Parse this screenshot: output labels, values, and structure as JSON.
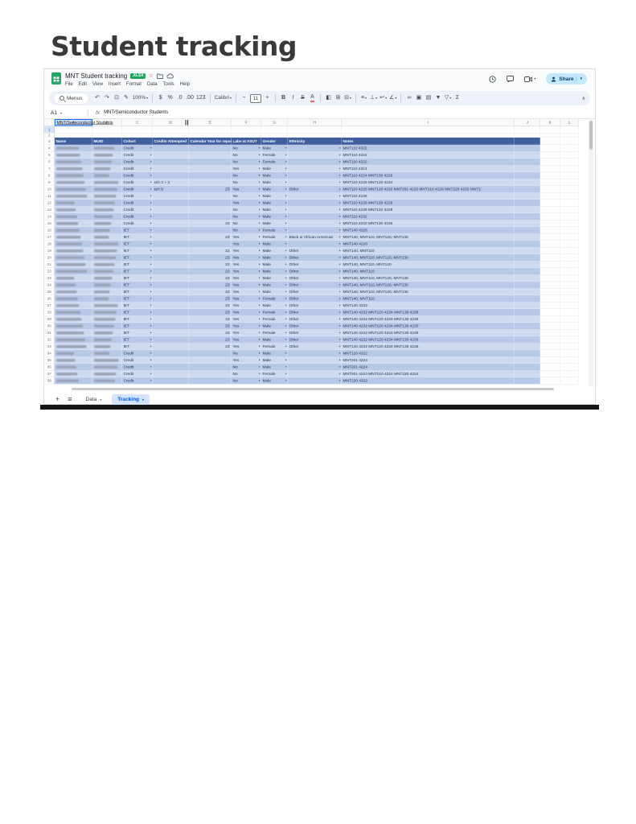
{
  "page": {
    "heading": "Student tracking"
  },
  "app": {
    "doc_title": "MNT Student tracking",
    "file_badge": ".XLSX",
    "share_label": "Share",
    "menus_label": "Menus",
    "menu_items": [
      "File",
      "Edit",
      "View",
      "Insert",
      "Format",
      "Data",
      "Tools",
      "Help"
    ],
    "toolbar": {
      "collapse_glyph": "∧",
      "items": [
        {
          "t": "icon",
          "name": "undo",
          "g": "↶"
        },
        {
          "t": "icon",
          "name": "redo",
          "g": "↷"
        },
        {
          "t": "icon",
          "name": "print",
          "g": "⊡"
        },
        {
          "t": "icon",
          "name": "paint-format",
          "g": "✎"
        },
        {
          "t": "text",
          "name": "zoom-select",
          "label": "100%",
          "caret": true
        },
        {
          "t": "sep"
        },
        {
          "t": "icon",
          "name": "format-currency",
          "g": "$"
        },
        {
          "t": "icon",
          "name": "format-percent",
          "g": "%"
        },
        {
          "t": "icon",
          "name": "decrease-decimals",
          "g": ".0"
        },
        {
          "t": "icon",
          "name": "increase-decimals",
          "g": ".00"
        },
        {
          "t": "icon",
          "name": "more-formats",
          "g": "123"
        },
        {
          "t": "sep"
        },
        {
          "t": "text",
          "name": "font-select",
          "label": "Calibri",
          "caret": true
        },
        {
          "t": "sep"
        },
        {
          "t": "icon",
          "name": "decrease-font-size",
          "g": "−"
        },
        {
          "t": "field",
          "name": "font-size-input",
          "label": "11"
        },
        {
          "t": "icon",
          "name": "increase-font-size",
          "g": "+"
        },
        {
          "t": "sep"
        },
        {
          "t": "icon",
          "name": "bold",
          "g": "B"
        },
        {
          "t": "icon",
          "name": "italic",
          "g": "I"
        },
        {
          "t": "icon",
          "name": "strikethrough",
          "g": "S"
        },
        {
          "t": "icon",
          "name": "text-color",
          "g": "A"
        },
        {
          "t": "sep"
        },
        {
          "t": "icon",
          "name": "fill-color",
          "g": "◧"
        },
        {
          "t": "icon",
          "name": "borders",
          "g": "⊞"
        },
        {
          "t": "icon",
          "name": "merge-cells",
          "g": "⊟",
          "caret": true
        },
        {
          "t": "sep"
        },
        {
          "t": "icon",
          "name": "horizontal-align",
          "g": "≡",
          "caret": true
        },
        {
          "t": "icon",
          "name": "vertical-align",
          "g": "⊥",
          "caret": true
        },
        {
          "t": "icon",
          "name": "text-wrap",
          "g": "↩",
          "caret": true
        },
        {
          "t": "icon",
          "name": "text-rotation",
          "g": "∠",
          "caret": true
        },
        {
          "t": "sep"
        },
        {
          "t": "icon",
          "name": "insert-link",
          "g": "∞"
        },
        {
          "t": "icon",
          "name": "insert-comment",
          "g": "▣"
        },
        {
          "t": "icon",
          "name": "insert-chart",
          "g": "▤"
        },
        {
          "t": "icon",
          "name": "create-filter",
          "g": "▼"
        },
        {
          "t": "icon",
          "name": "filter-views",
          "g": "▽",
          "caret": true
        },
        {
          "t": "icon",
          "name": "functions-sigma",
          "g": "Σ"
        }
      ]
    },
    "formula_bar": {
      "cell_ref": "A1",
      "fx_label": "fx",
      "value": "MNT/Semiconductor Students"
    },
    "grid": {
      "column_letters": [
        "A",
        "B",
        "C",
        "D",
        "E",
        "F",
        "G",
        "H",
        "I",
        "J",
        "K",
        "L"
      ],
      "a1_text": "MNT/Semiconductor Students",
      "header_row_number": 3,
      "columns": [
        "Name",
        "MUID",
        "Cohort",
        "Credits Attempted",
        "Calendar Year for reporting",
        "Labs at ASU?",
        "Gender",
        "Ethnicity",
        "Notes"
      ],
      "rows": [
        {
          "n": 4,
          "cohort": "Credit",
          "credits": "",
          "year": "",
          "labs": "No",
          "gender": "Male",
          "eth": "",
          "notes": "MNT110 4322"
        },
        {
          "n": 5,
          "cohort": "Credit",
          "credits": "",
          "year": "",
          "labs": "No",
          "gender": "Female",
          "eth": "",
          "notes": "MNT110 4322"
        },
        {
          "n": 6,
          "cohort": "Credit",
          "credits": "",
          "year": "",
          "labs": "No",
          "gender": "Female",
          "eth": "",
          "notes": "MNT110 4322"
        },
        {
          "n": 7,
          "cohort": "Credit",
          "credits": "",
          "year": "",
          "labs": "Yes",
          "gender": "Male",
          "eth": "",
          "notes": "MNT110 4324"
        },
        {
          "n": 8,
          "cohort": "Credit",
          "credits": "",
          "year": "",
          "labs": "No",
          "gender": "Male",
          "eth": "",
          "notes": "MNT110 4224 MNT130 4226"
        },
        {
          "n": 9,
          "cohort": "Credit",
          "credits": "sch 3 + 3",
          "year": "",
          "labs": "No",
          "gender": "Male",
          "eth": "",
          "notes": "MNT110 4226 MNT120 4234"
        },
        {
          "n": 10,
          "cohort": "Credit",
          "credits": "sch 9",
          "year": "23",
          "labs": "Yes",
          "gender": "Male",
          "eth": "Other",
          "notes": "MNT110 4226 MNT120 4232 MNT201 4226 MNT210 4226 MNT220 4232 MNT2"
        },
        {
          "n": 11,
          "cohort": "Credit",
          "credits": "",
          "year": "",
          "labs": "No",
          "gender": "Male",
          "eth": "",
          "notes": "MNT110 4226"
        },
        {
          "n": 12,
          "cohort": "Credit",
          "credits": "",
          "year": "",
          "labs": "Yes",
          "gender": "Male",
          "eth": "",
          "notes": "MNT110 4226 MNT130 4226"
        },
        {
          "n": 13,
          "cohort": "Credit",
          "credits": "",
          "year": "",
          "labs": "No",
          "gender": "Male",
          "eth": "",
          "notes": "MNT110 4226 MNT120 4228"
        },
        {
          "n": 14,
          "cohort": "Credit",
          "credits": "",
          "year": "",
          "labs": "No",
          "gender": "Male",
          "eth": "",
          "notes": "MNT110 4232"
        },
        {
          "n": 15,
          "cohort": "Credit",
          "credits": "",
          "year": "23",
          "labs": "No",
          "gender": "Male",
          "eth": "",
          "notes": "MNT110 4232 MNT130 4236"
        },
        {
          "n": 16,
          "cohort": "IET",
          "credits": "",
          "year": "",
          "labs": "No",
          "gender": "Female",
          "eth": "",
          "notes": "MNT140 4226"
        },
        {
          "n": 17,
          "cohort": "IET",
          "credits": "",
          "year": "23",
          "labs": "Yes",
          "gender": "Female",
          "eth": "Black or African American",
          "notes": "MNT140, MNT110, MNT120, MNT130"
        },
        {
          "n": 18,
          "cohort": "IET",
          "credits": "",
          "year": "",
          "labs": "Yes",
          "gender": "Male",
          "eth": "",
          "notes": "MNT140 4226"
        },
        {
          "n": 19,
          "cohort": "IET",
          "credits": "",
          "year": "23",
          "labs": "Yes",
          "gender": "Male",
          "eth": "Other",
          "notes": "MNT140, MNT110"
        },
        {
          "n": 20,
          "cohort": "IET",
          "credits": "",
          "year": "23",
          "labs": "Yes",
          "gender": "Male",
          "eth": "Other",
          "notes": "MNT140, MNT110, MNT120, MNT130"
        },
        {
          "n": 21,
          "cohort": "IET",
          "credits": "",
          "year": "23",
          "labs": "Yes",
          "gender": "Male",
          "eth": "Other",
          "notes": "MNT140, MNT110, MNT120"
        },
        {
          "n": 22,
          "cohort": "IET",
          "credits": "",
          "year": "23",
          "labs": "Yes",
          "gender": "Male",
          "eth": "Other",
          "notes": "MNT140, MNT110"
        },
        {
          "n": 23,
          "cohort": "IET",
          "credits": "",
          "year": "23",
          "labs": "Yes",
          "gender": "Male",
          "eth": "Other",
          "notes": "MNT140, MNT110, MNT120, MNT130"
        },
        {
          "n": 24,
          "cohort": "IET",
          "credits": "",
          "year": "23",
          "labs": "Yes",
          "gender": "Male",
          "eth": "Other",
          "notes": "MNT140, MNT110, MNT120, MNT130"
        },
        {
          "n": 25,
          "cohort": "IET",
          "credits": "",
          "year": "23",
          "labs": "Yes",
          "gender": "Male",
          "eth": "Other",
          "notes": "MNT140, MNT110, MNT120, MNT130"
        },
        {
          "n": 26,
          "cohort": "IET",
          "credits": "",
          "year": "23",
          "labs": "Yes",
          "gender": "Female",
          "eth": "Other",
          "notes": "MNT140, MNT110"
        },
        {
          "n": 27,
          "cohort": "IET",
          "credits": "",
          "year": "23",
          "labs": "Yes",
          "gender": "Male",
          "eth": "Other",
          "notes": "MNT140 4232"
        },
        {
          "n": 28,
          "cohort": "IET",
          "credits": "",
          "year": "23",
          "labs": "Yes",
          "gender": "Female",
          "eth": "Other",
          "notes": "MNT140 4232 MNT120 4234 MNT130 4236"
        },
        {
          "n": 29,
          "cohort": "IET",
          "credits": "",
          "year": "23",
          "labs": "Yes",
          "gender": "Female",
          "eth": "Other",
          "notes": "MNT140 4232 MNT120 4234 MNT130 4236"
        },
        {
          "n": 30,
          "cohort": "IET",
          "credits": "",
          "year": "23",
          "labs": "Yes",
          "gender": "Male",
          "eth": "Other",
          "notes": "MNT140 4232 MNT120 4234 MNT130 4230"
        },
        {
          "n": 31,
          "cohort": "IET",
          "credits": "",
          "year": "23",
          "labs": "Yes",
          "gender": "Female",
          "eth": "Other",
          "notes": "MNT140 4232 MNT120 4234 MNT130 4236"
        },
        {
          "n": 32,
          "cohort": "IET",
          "credits": "",
          "year": "23",
          "labs": "Yes",
          "gender": "Male",
          "eth": "Other",
          "notes": "MNT140 4232 MNT120 4234 MNT130 4236"
        },
        {
          "n": 33,
          "cohort": "IET",
          "credits": "",
          "year": "23",
          "labs": "Yes",
          "gender": "Female",
          "eth": "Other",
          "notes": "MNT140 4232 MNT120 4234 MNT130 4236"
        },
        {
          "n": 34,
          "cohort": "Credit",
          "credits": "",
          "year": "",
          "labs": "No",
          "gender": "Male",
          "eth": "",
          "notes": "MNT120 4322"
        },
        {
          "n": 35,
          "cohort": "Credit",
          "credits": "",
          "year": "",
          "labs": "Yes",
          "gender": "Male",
          "eth": "",
          "notes": "MNT201 4224"
        },
        {
          "n": 36,
          "cohort": "Credit",
          "credits": "",
          "year": "",
          "labs": "No",
          "gender": "Male",
          "eth": "",
          "notes": "MNT201 4224"
        },
        {
          "n": 37,
          "cohort": "Credit",
          "credits": "",
          "year": "",
          "labs": "No",
          "gender": "Female",
          "eth": "",
          "notes": "MNT201 4224 MNT210 4224 MNT220 4224"
        },
        {
          "n": 38,
          "cohort": "Credit",
          "credits": "",
          "year": "",
          "labs": "No",
          "gender": "Male",
          "eth": "",
          "notes": "MNT220 4322"
        }
      ]
    },
    "tabbar_icons": {
      "add_sheet": "+",
      "all_sheets": "≡"
    },
    "sheet_tabs": [
      {
        "label": "Data",
        "active": false
      },
      {
        "label": "Tracking",
        "active": true
      }
    ]
  },
  "colors": {
    "header_row_bg": "#3f5f9e",
    "row_even_bg": "#b9c8e9",
    "row_odd_bg": "#cfdaf1",
    "selection_border": "#1b6ef3",
    "active_tab_text": "#0b57d0",
    "active_tab_bg": "#d3e3fd",
    "share_button_bg": "#c2e7ff",
    "badge_bg": "#1da35a"
  }
}
